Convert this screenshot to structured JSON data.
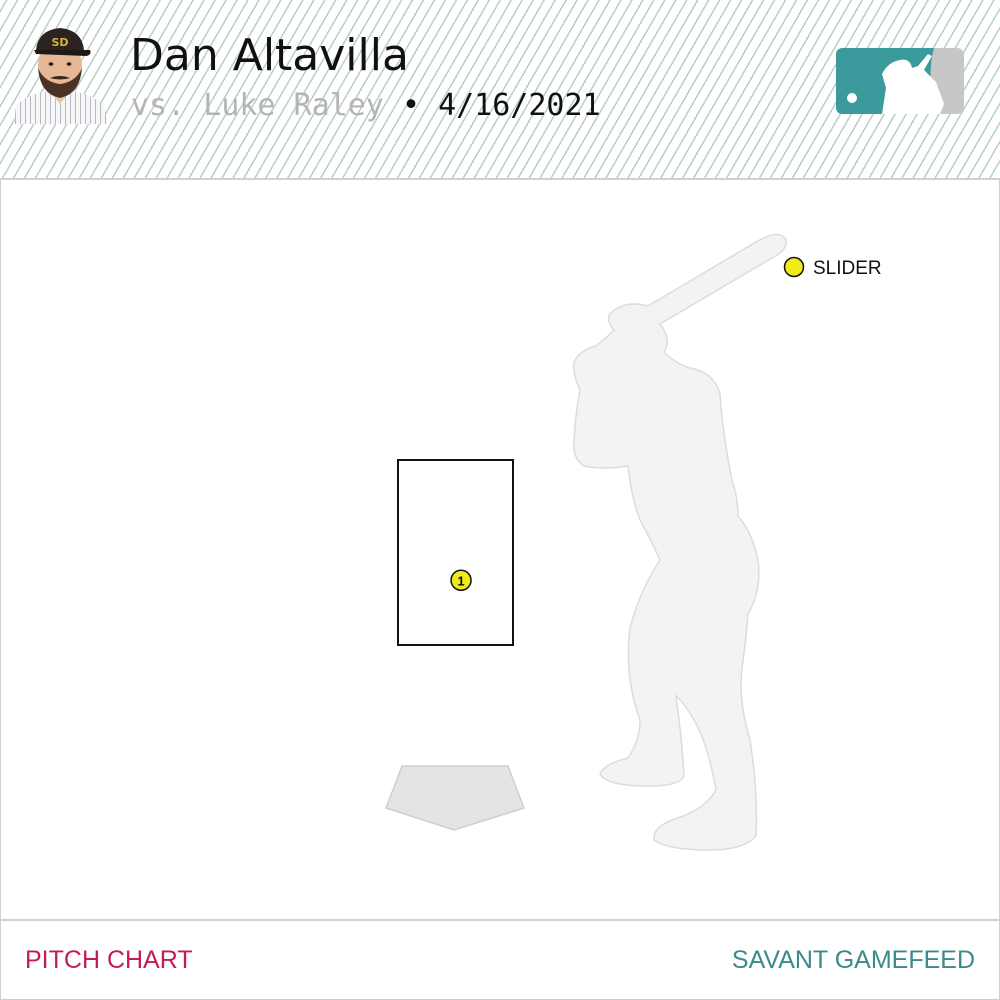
{
  "header": {
    "pitcher": "Dan Altavilla",
    "matchup_prefix": "vs.",
    "batter": "Luke Raley",
    "separator": "•",
    "date": "4/16/2021",
    "team_cap_text": "SD",
    "avatar_icon": "player-headshot-icon",
    "logo_icon": "mlb-logo-icon"
  },
  "colors": {
    "accent_teal": "#3a9a9c",
    "logo_gray": "#c7c7c7",
    "pitch_slider": "#f0eb1a",
    "footer_left": "#c21f4e",
    "footer_right": "#3a8b8c"
  },
  "chart_data": {
    "type": "scatter",
    "title": "",
    "legend": [
      {
        "name": "SLIDER",
        "color": "#f0eb1a"
      }
    ],
    "legend_placement": "top-right",
    "strike_zone": {
      "x": [
        -0.83,
        0.83
      ],
      "z": [
        1.5,
        3.5
      ]
    },
    "pitches": [
      {
        "number": "1",
        "type": "SLIDER",
        "x": 0.08,
        "z": 2.2
      }
    ]
  },
  "footer": {
    "left_label": "PITCH CHART",
    "right_label": "SAVANT GAMEFEED"
  }
}
